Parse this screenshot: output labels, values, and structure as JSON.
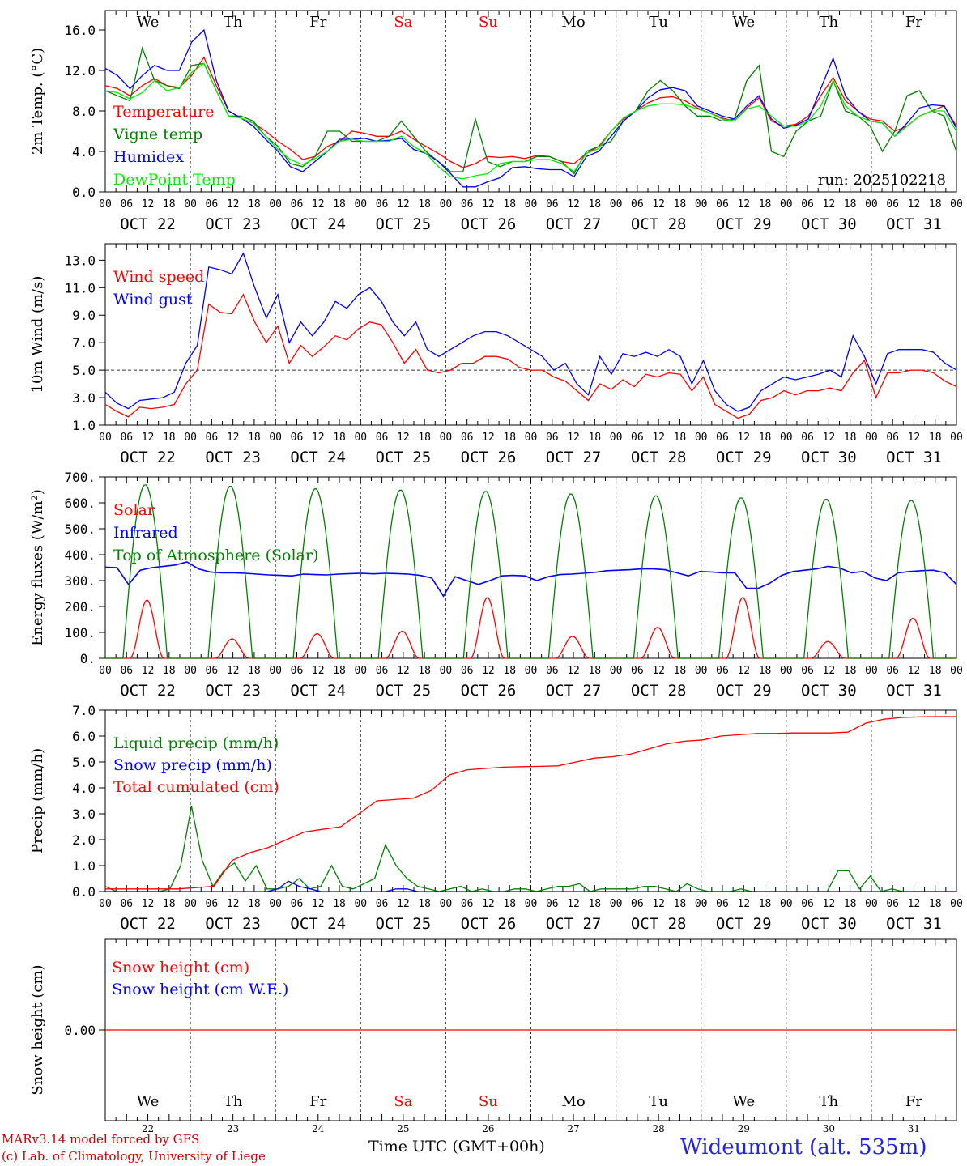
{
  "chart_data": {
    "type": "line",
    "x_tick_hours": [
      "00",
      "06",
      "12",
      "18"
    ],
    "days": [
      {
        "date": "OCT 22",
        "weekday": "We",
        "num": "22",
        "weekend": false
      },
      {
        "date": "OCT 23",
        "weekday": "Th",
        "num": "23",
        "weekend": false
      },
      {
        "date": "OCT 24",
        "weekday": "Fr",
        "num": "24",
        "weekend": false
      },
      {
        "date": "OCT 25",
        "weekday": "Sa",
        "num": "25",
        "weekend": true
      },
      {
        "date": "OCT 26",
        "weekday": "Su",
        "num": "26",
        "weekend": true
      },
      {
        "date": "OCT 27",
        "weekday": "Mo",
        "num": "27",
        "weekend": false
      },
      {
        "date": "OCT 28",
        "weekday": "Tu",
        "num": "28",
        "weekend": false
      },
      {
        "date": "OCT 29",
        "weekday": "We",
        "num": "29",
        "weekend": false
      },
      {
        "date": "OCT 30",
        "weekday": "Th",
        "num": "30",
        "weekend": false
      },
      {
        "date": "OCT 31",
        "weekday": "Fr",
        "num": "31",
        "weekend": false
      }
    ],
    "x_end_label": "00",
    "panels": [
      {
        "ylabel": "2m Temp. (°C)",
        "ylim": [
          0,
          18
        ],
        "yticks": [
          0,
          4,
          8,
          12,
          16
        ],
        "ytick_labels": [
          "0.0",
          "4.0",
          "8.0",
          "12.0",
          "16.0"
        ],
        "annotation": "run: 2025102218",
        "show_weekdays": true,
        "series": [
          {
            "name": "Temperature",
            "color": "#ff0000",
            "values": [
              10.5,
              10.2,
              9.5,
              10.5,
              11.2,
              10.5,
              10.3,
              11.5,
              13.3,
              10.5,
              8.0,
              7.3,
              6.8,
              6.0,
              5.0,
              4.2,
              3.2,
              3.5,
              4.5,
              5.0,
              6.0,
              5.8,
              5.5,
              5.5,
              6.0,
              5.2,
              4.5,
              3.8,
              3.0,
              2.4,
              2.8,
              3.5,
              3.4,
              3.5,
              3.3,
              3.6,
              3.5,
              3.0,
              2.8,
              3.8,
              4.5,
              6.0,
              7.2,
              8.0,
              8.8,
              9.3,
              9.4,
              9.0,
              8.3,
              7.8,
              7.3,
              7.0,
              8.3,
              9.3,
              7.0,
              6.5,
              6.7,
              7.5,
              9.5,
              11.3,
              9.0,
              8.0,
              7.2,
              7.0,
              6.0,
              6.5,
              7.5,
              8.0,
              8.5,
              6.5
            ]
          },
          {
            "name": "Vigne temp",
            "color": "#008000",
            "values": [
              10.0,
              9.5,
              9.0,
              14.2,
              11.0,
              10.5,
              10.2,
              12.5,
              12.7,
              10.0,
              7.5,
              7.5,
              7.0,
              5.5,
              4.5,
              2.8,
              2.5,
              3.5,
              6.0,
              6.0,
              5.0,
              5.0,
              5.0,
              5.5,
              7.0,
              5.5,
              4.0,
              3.0,
              2.0,
              2.0,
              7.2,
              3.0,
              2.5,
              3.0,
              3.0,
              3.5,
              3.5,
              3.0,
              1.8,
              4.0,
              4.5,
              5.0,
              7.0,
              8.0,
              10.0,
              11.0,
              10.0,
              8.5,
              7.5,
              7.5,
              7.0,
              7.2,
              11.0,
              12.5,
              4.0,
              3.5,
              6.0,
              7.0,
              7.5,
              11.0,
              8.0,
              7.5,
              6.5,
              4.0,
              6.0,
              9.5,
              10.0,
              8.0,
              7.5,
              4.0
            ]
          },
          {
            "name": "Humidex",
            "color": "#0000ff",
            "values": [
              12.2,
              11.5,
              10.2,
              11.5,
              12.5,
              12.0,
              12.0,
              14.8,
              16.0,
              11.0,
              8.0,
              7.3,
              6.5,
              5.2,
              4.0,
              2.5,
              2.0,
              3.0,
              4.0,
              5.2,
              5.2,
              5.3,
              5.0,
              5.1,
              5.3,
              4.2,
              3.8,
              3.0,
              1.8,
              0.5,
              0.5,
              1.0,
              1.4,
              2.4,
              2.5,
              2.3,
              2.2,
              2.2,
              1.5,
              3.5,
              4.0,
              5.5,
              7.0,
              8.0,
              9.3,
              10.1,
              10.3,
              10.0,
              8.5,
              8.0,
              7.5,
              7.2,
              8.5,
              9.5,
              7.2,
              6.3,
              6.6,
              7.2,
              10.2,
              13.2,
              9.5,
              8.0,
              7.0,
              6.8,
              5.5,
              6.8,
              8.3,
              8.6,
              8.5,
              6.3
            ]
          },
          {
            "name": "DewPoint Temp",
            "color": "#00ee00",
            "values": [
              10.0,
              9.8,
              9.2,
              9.8,
              11.0,
              10.0,
              10.3,
              11.8,
              12.7,
              10.0,
              7.5,
              7.3,
              6.8,
              5.5,
              4.2,
              3.2,
              2.7,
              3.3,
              4.0,
              5.0,
              5.2,
              5.0,
              5.0,
              5.0,
              5.5,
              4.5,
              3.8,
              2.5,
              1.5,
              1.3,
              1.6,
              1.8,
              2.8,
              3.0,
              3.0,
              3.2,
              3.2,
              2.8,
              2.0,
              3.8,
              4.3,
              6.0,
              7.3,
              8.0,
              8.5,
              8.7,
              8.7,
              8.6,
              8.2,
              7.8,
              7.2,
              7.0,
              8.2,
              8.5,
              7.5,
              6.5,
              6.5,
              7.0,
              8.5,
              11.0,
              8.5,
              7.5,
              7.0,
              6.8,
              5.5,
              6.5,
              7.5,
              8.0,
              8.0,
              6.0
            ]
          }
        ]
      },
      {
        "ylabel": "10m Wind (m/s)",
        "ylim": [
          1,
          14.2
        ],
        "yticks": [
          1,
          3,
          5,
          7,
          9,
          11,
          13
        ],
        "ytick_labels": [
          "1.0",
          "3.0",
          "5.0",
          "7.0",
          "9.0",
          "11.0",
          "13.0"
        ],
        "hline": 5,
        "series": [
          {
            "name": "Wind speed",
            "color": "#ff0000",
            "values": [
              2.5,
              2.0,
              1.6,
              2.3,
              2.2,
              2.3,
              2.5,
              4.0,
              5.0,
              9.8,
              9.2,
              9.1,
              10.5,
              8.5,
              7.0,
              8.2,
              5.5,
              6.8,
              6.0,
              6.7,
              7.5,
              7.2,
              8.0,
              8.5,
              8.3,
              7.0,
              5.5,
              6.5,
              5.0,
              4.8,
              5.0,
              5.5,
              5.5,
              6.0,
              6.0,
              5.8,
              5.2,
              5.0,
              5.0,
              4.5,
              4.2,
              3.5,
              2.8,
              4.0,
              3.6,
              4.3,
              3.8,
              4.7,
              4.5,
              4.8,
              4.7,
              3.5,
              4.5,
              2.5,
              2.0,
              1.5,
              1.8,
              2.8,
              3.0,
              3.5,
              3.2,
              3.5,
              3.5,
              3.7,
              3.5,
              4.8,
              5.7,
              3.0,
              4.8,
              4.8,
              5.0,
              5.0,
              4.8,
              4.2,
              3.8
            ]
          },
          {
            "name": "Wind gust",
            "color": "#0000ff",
            "values": [
              3.4,
              2.6,
              2.2,
              2.8,
              2.9,
              3.0,
              3.4,
              5.5,
              6.8,
              12.5,
              12.3,
              12.0,
              13.5,
              11.0,
              8.8,
              10.5,
              7.0,
              8.5,
              7.5,
              8.5,
              10.0,
              9.5,
              10.5,
              11.0,
              10.0,
              8.5,
              7.5,
              8.5,
              6.5,
              6.0,
              6.5,
              7.0,
              7.5,
              7.8,
              7.8,
              7.5,
              7.0,
              6.5,
              6.0,
              5.0,
              5.5,
              4.0,
              3.2,
              6.0,
              4.7,
              6.2,
              6.0,
              6.3,
              6.0,
              6.5,
              6.0,
              4.0,
              5.7,
              3.5,
              2.5,
              2.0,
              2.3,
              3.5,
              4.0,
              4.5,
              4.3,
              4.5,
              4.7,
              5.0,
              4.5,
              7.5,
              6.0,
              4.0,
              6.2,
              6.5,
              6.5,
              6.5,
              6.3,
              5.5,
              5.0
            ]
          }
        ]
      },
      {
        "ylabel": "Energy fluxes (W/m²)",
        "ylim": [
          0,
          700
        ],
        "yticks": [
          0,
          100,
          200,
          300,
          400,
          500,
          600,
          700
        ],
        "ytick_labels": [
          "0.",
          "100.",
          "200.",
          "300.",
          "400.",
          "500.",
          "600.",
          "700."
        ],
        "series": [
          {
            "name": "Solar",
            "color": "#ff0000",
            "day_peaks": [
              225,
              75,
              95,
              105,
              235,
              85,
              120,
              235,
              65,
              155
            ]
          },
          {
            "name": "Infrared",
            "color": "#0000ff",
            "values": [
              352,
              350,
              285,
              340,
              350,
              355,
              360,
              372,
              345,
              333,
              330,
              330,
              328,
              325,
              322,
              320,
              318,
              325,
              323,
              322,
              325,
              327,
              328,
              326,
              328,
              327,
              325,
              320,
              310,
              240,
              315,
              300,
              285,
              300,
              318,
              320,
              318,
              300,
              315,
              323,
              325,
              328,
              332,
              338,
              340,
              342,
              345,
              345,
              342,
              330,
              318,
              335,
              333,
              330,
              330,
              270,
              270,
              290,
              320,
              335,
              340,
              345,
              355,
              348,
              330,
              335,
              310,
              300,
              330,
              335,
              338,
              340,
              330,
              285
            ]
          },
          {
            "name": "Top of Atmosphere (Solar)",
            "color": "#008000",
            "day_peaks": [
              670,
              665,
              655,
              650,
              645,
              635,
              628,
              620,
              615,
              610
            ]
          }
        ]
      },
      {
        "ylabel": "Precip (mm/h)",
        "ylim": [
          0,
          7
        ],
        "yticks": [
          0,
          1,
          2,
          3,
          4,
          5,
          6,
          7
        ],
        "ytick_labels": [
          "0.0",
          "1.0",
          "2.0",
          "3.0",
          "4.0",
          "5.0",
          "6.0",
          "7.0"
        ],
        "series": [
          {
            "name": "Liquid precip (mm/h)",
            "color": "#008000",
            "values": [
              0.2,
              0.0,
              0.0,
              0.0,
              0.0,
              0.0,
              0.1,
              1.0,
              3.3,
              1.2,
              0.2,
              0.8,
              1.1,
              0.4,
              1.0,
              0.1,
              0.1,
              0.2,
              0.5,
              0.1,
              0.2,
              1.0,
              0.2,
              0.1,
              0.3,
              0.5,
              1.8,
              1.0,
              0.5,
              0.2,
              0.1,
              0.0,
              0.1,
              0.2,
              0.0,
              0.1,
              0.0,
              0.0,
              0.1,
              0.1,
              0.0,
              0.1,
              0.2,
              0.2,
              0.3,
              0.0,
              0.1,
              0.1,
              0.1,
              0.1,
              0.2,
              0.2,
              0.1,
              0.0,
              0.3,
              0.1,
              0.0,
              0.0,
              0.0,
              0.1,
              0.0,
              0.0,
              0.0,
              0.0,
              0.0,
              0.0,
              0.0,
              0.0,
              0.8,
              0.8,
              0.1,
              0.6,
              0.0,
              0.1,
              0.0,
              0.0,
              0.0,
              0.0,
              0.0,
              0.0
            ]
          },
          {
            "name": "Snow precip (mm/h)",
            "color": "#0000ff",
            "values": [
              0.0,
              0.0,
              0.0,
              0.0,
              0.0,
              0.0,
              0.0,
              0.0,
              0.0,
              0.0,
              0.0,
              0.0,
              0.0,
              0.0,
              0.0,
              0.0,
              0.1,
              0.4,
              0.2,
              0.1,
              0.0,
              0.0,
              0.0,
              0.0,
              0.0,
              0.0,
              0.0,
              0.1,
              0.1,
              0.0,
              0.0,
              0.0,
              0.0,
              0.0,
              0.0,
              0.0,
              0.0,
              0.0,
              0.0,
              0.0,
              0.0,
              0.0,
              0.0,
              0.0,
              0.0,
              0.0,
              0.0,
              0.0,
              0.0,
              0.0,
              0.0,
              0.0,
              0.0,
              0.0,
              0.0,
              0.0,
              0.0,
              0.0,
              0.0,
              0.0,
              0.0,
              0.0,
              0.0,
              0.0,
              0.0,
              0.0,
              0.0,
              0.0,
              0.0,
              0.0,
              0.0,
              0.0,
              0.0,
              0.0,
              0.0,
              0.0,
              0.0,
              0.0,
              0.0,
              0.0
            ]
          },
          {
            "name": "Total cumulated (cm)",
            "color": "#ff0000",
            "values": [
              0.1,
              0.1,
              0.1,
              0.1,
              0.1,
              0.15,
              0.2,
              1.2,
              1.5,
              1.7,
              2.0,
              2.3,
              2.4,
              2.5,
              3.0,
              3.5,
              3.55,
              3.6,
              3.9,
              4.5,
              4.7,
              4.75,
              4.8,
              4.82,
              4.83,
              4.85,
              5.0,
              5.15,
              5.2,
              5.3,
              5.5,
              5.7,
              5.8,
              5.85,
              6.0,
              6.05,
              6.1,
              6.1,
              6.12,
              6.12,
              6.12,
              6.15,
              6.5,
              6.65,
              6.72,
              6.74,
              6.75,
              6.75
            ]
          }
        ]
      },
      {
        "ylabel": "Snow height (cm)",
        "ylim": [
          -1,
          1
        ],
        "yticks": [
          0
        ],
        "ytick_labels": [
          "0.00"
        ],
        "series": [
          {
            "name": "Snow height (cm)",
            "color": "#ff0000",
            "values": [
              0,
              0
            ]
          },
          {
            "name": "Snow height (cm W.E.)",
            "color": "#0000ff",
            "values": []
          }
        ]
      }
    ],
    "xlabel": "Time UTC (GMT+00h)"
  },
  "footer": {
    "model": "MARv3.14 model forced by GFS",
    "credit": "(c) Lab. of Climatology, University of Liege",
    "xlabel": "Time UTC (GMT+00h)",
    "station": "Wideumont (alt. 535m)"
  },
  "colors": {
    "weekend": "#ff0000",
    "text": "#000000",
    "station": "#2222ee"
  }
}
